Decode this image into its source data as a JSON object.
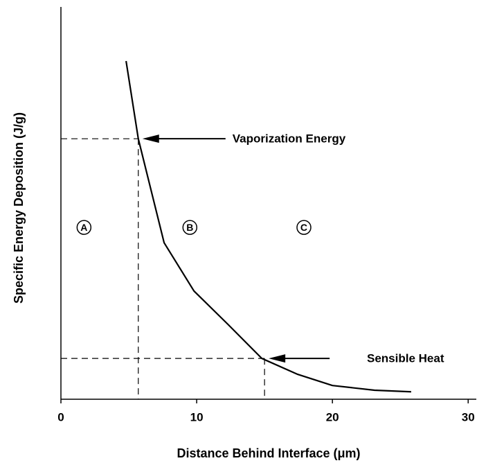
{
  "chart_data": {
    "type": "line",
    "x_label": "Distance Behind Interface (μm)",
    "y_label": "Specific Energy Deposition (J/g)",
    "xlim": [
      0,
      30.6
    ],
    "xticks": [
      0,
      10,
      20,
      30
    ],
    "ylim": [
      0,
      100
    ],
    "series": [
      {
        "color": "#000000",
        "x": [
          4.8,
          5.7,
          7.6,
          9.8,
          12.3,
          14.8,
          17.4,
          20,
          23.1,
          25.8
        ],
        "values": [
          86.2,
          66.4,
          39.9,
          27.6,
          19.1,
          10.4,
          6.4,
          3.5,
          2.3,
          1.9
        ]
      }
    ],
    "annotations": [
      {
        "text": "Vaporization Energy",
        "x": 5.7,
        "y": 66.4
      },
      {
        "text": "Sensible Heat",
        "x": 15,
        "y": 10.4
      }
    ],
    "regions": [
      {
        "text": "A",
        "x": 1.7,
        "y": 43.8
      },
      {
        "text": "B",
        "x": 9.5,
        "y": 43.8
      },
      {
        "text": "C",
        "x": 17.9,
        "y": 43.8
      }
    ]
  }
}
